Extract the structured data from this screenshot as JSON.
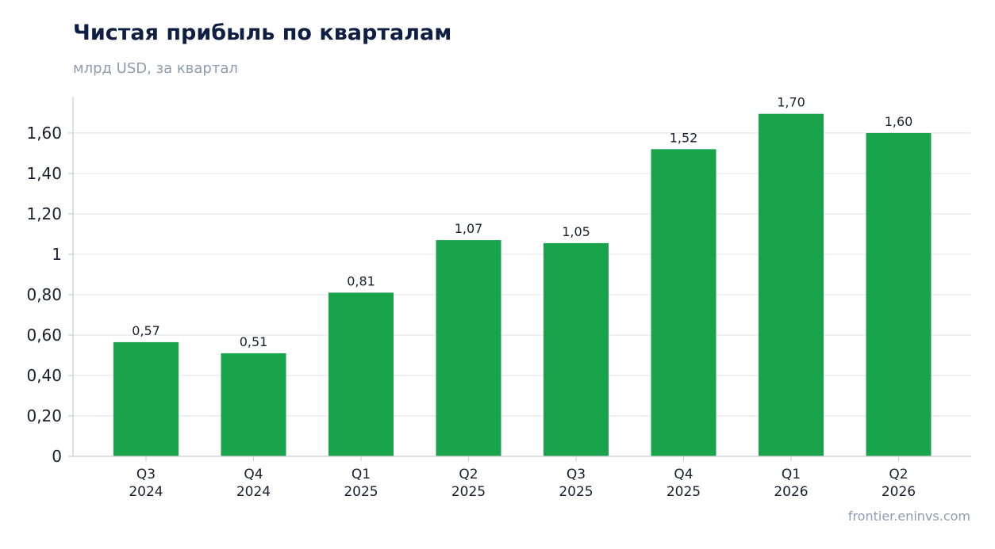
{
  "title": "Чистая прибыль по кварталам",
  "subtitle": "млрд USD, за квартал",
  "source": "frontier.eninvs.com",
  "colors": {
    "bar": "#19a44c",
    "grid": "#e3e7ee",
    "axis": "#c9ced8",
    "tick_text": "#1a1f2e",
    "title": "#0f1f44",
    "muted": "#8e9db1"
  },
  "chart_data": {
    "type": "bar",
    "categories": [
      [
        "Q3",
        "2024"
      ],
      [
        "Q4",
        "2024"
      ],
      [
        "Q1",
        "2025"
      ],
      [
        "Q2",
        "2025"
      ],
      [
        "Q3",
        "2025"
      ],
      [
        "Q4",
        "2025"
      ],
      [
        "Q1",
        "2026"
      ],
      [
        "Q2",
        "2026"
      ]
    ],
    "values": [
      0.565,
      0.51,
      0.81,
      1.07,
      1.055,
      1.52,
      1.695,
      1.6
    ],
    "data_labels": [
      "0,57",
      "0,51",
      "0,81",
      "1,07",
      "1,05",
      "1,52",
      "1,70",
      "1,60"
    ],
    "yticks": [
      0,
      0.2,
      0.4,
      0.6,
      0.8,
      1.0,
      1.2,
      1.4,
      1.6
    ],
    "ytick_labels": [
      "0",
      "0,20",
      "0,40",
      "0,60",
      "0,80",
      "1",
      "1,20",
      "1,40",
      "1,60"
    ],
    "ylim": [
      0,
      1.78
    ],
    "grid": true,
    "legend": false
  }
}
